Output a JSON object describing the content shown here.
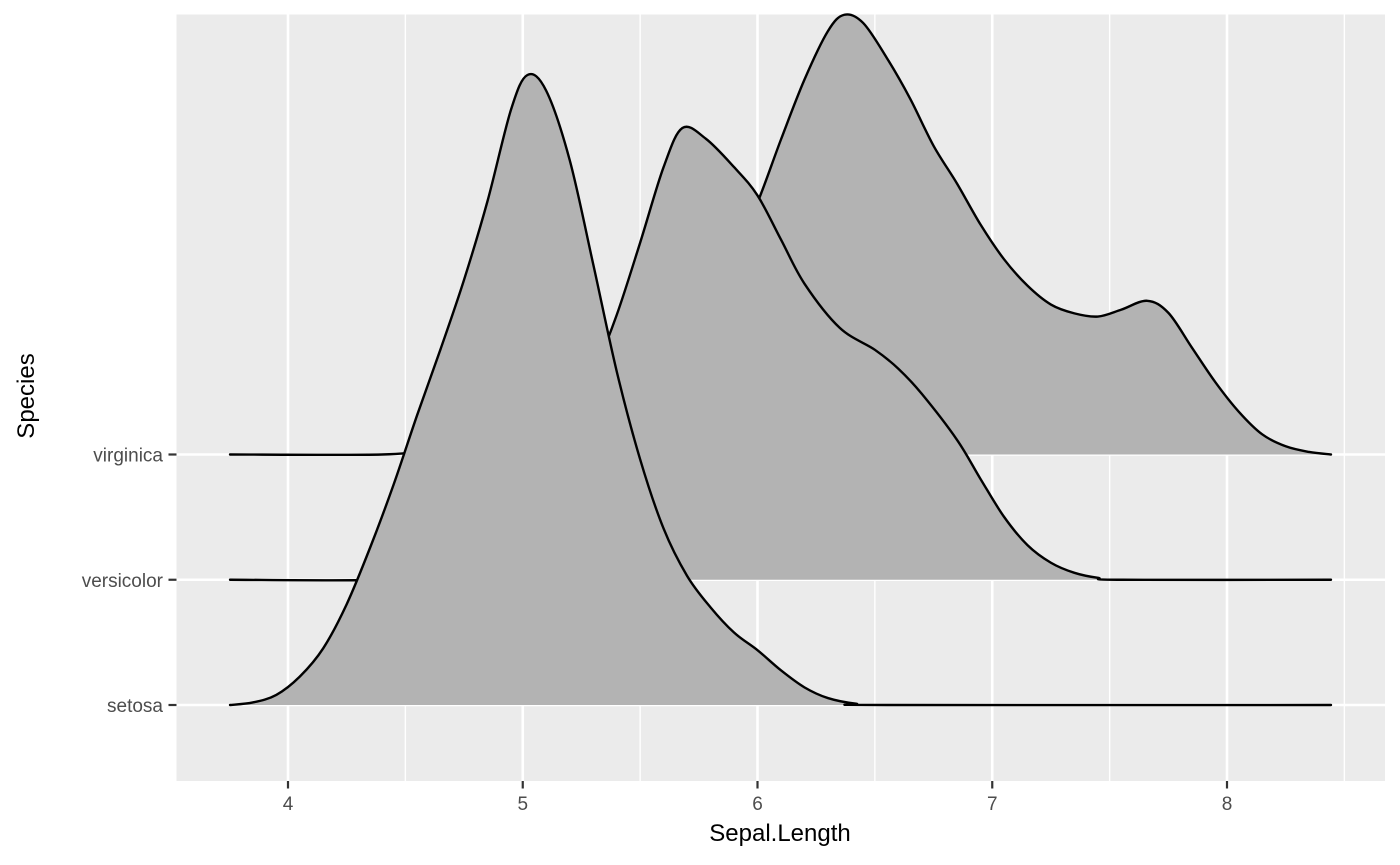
{
  "chart_data": {
    "type": "area",
    "variant": "ridgeline-density",
    "title": "",
    "xlabel": "Sepal.Length",
    "ylabel": "Species",
    "x_ticks": [
      4,
      5,
      6,
      7,
      8
    ],
    "x_minor_ticks": [
      4.5,
      5.5,
      6.5,
      7.5,
      8.5
    ],
    "x_panel_range": [
      3.525,
      8.673
    ],
    "curve_x_range": [
      3.753,
      8.443
    ],
    "grid": true,
    "legend": false,
    "categories": [
      "setosa",
      "versicolor",
      "virginica"
    ],
    "height_note": "heights are density relative to overall max (setosa peak = 1.0)",
    "series": [
      {
        "name": "setosa",
        "peak_x": 5.0,
        "points": [
          [
            3.753,
            0
          ],
          [
            3.85,
            0.004
          ],
          [
            3.95,
            0.016
          ],
          [
            4.05,
            0.045
          ],
          [
            4.15,
            0.09
          ],
          [
            4.25,
            0.16
          ],
          [
            4.35,
            0.25
          ],
          [
            4.45,
            0.35
          ],
          [
            4.55,
            0.46
          ],
          [
            4.65,
            0.565
          ],
          [
            4.75,
            0.675
          ],
          [
            4.85,
            0.8
          ],
          [
            4.95,
            0.945
          ],
          [
            5.02,
            1.0
          ],
          [
            5.1,
            0.975
          ],
          [
            5.2,
            0.865
          ],
          [
            5.3,
            0.7
          ],
          [
            5.4,
            0.53
          ],
          [
            5.5,
            0.39
          ],
          [
            5.6,
            0.28
          ],
          [
            5.7,
            0.205
          ],
          [
            5.8,
            0.155
          ],
          [
            5.9,
            0.115
          ],
          [
            6.0,
            0.087
          ],
          [
            6.1,
            0.055
          ],
          [
            6.2,
            0.028
          ],
          [
            6.3,
            0.011
          ],
          [
            6.42,
            0.002
          ],
          [
            6.55,
            0
          ],
          [
            8.443,
            0
          ]
        ]
      },
      {
        "name": "versicolor",
        "peak_x": 5.68,
        "points": [
          [
            3.753,
            0
          ],
          [
            4.4,
            0
          ],
          [
            4.6,
            0.012
          ],
          [
            4.8,
            0.045
          ],
          [
            5.0,
            0.115
          ],
          [
            5.15,
            0.2
          ],
          [
            5.3,
            0.325
          ],
          [
            5.4,
            0.42
          ],
          [
            5.5,
            0.535
          ],
          [
            5.6,
            0.655
          ],
          [
            5.68,
            0.717
          ],
          [
            5.78,
            0.7
          ],
          [
            5.9,
            0.655
          ],
          [
            6.0,
            0.61
          ],
          [
            6.1,
            0.54
          ],
          [
            6.2,
            0.47
          ],
          [
            6.35,
            0.4
          ],
          [
            6.5,
            0.365
          ],
          [
            6.6,
            0.335
          ],
          [
            6.7,
            0.295
          ],
          [
            6.85,
            0.222
          ],
          [
            6.95,
            0.16
          ],
          [
            7.05,
            0.1
          ],
          [
            7.15,
            0.055
          ],
          [
            7.25,
            0.027
          ],
          [
            7.35,
            0.011
          ],
          [
            7.45,
            0.003
          ],
          [
            7.55,
            0
          ],
          [
            8.443,
            0
          ]
        ]
      },
      {
        "name": "virginica",
        "peak_x": 6.37,
        "points": [
          [
            3.753,
            0
          ],
          [
            4.4,
            0
          ],
          [
            4.6,
            0.008
          ],
          [
            4.8,
            0.02
          ],
          [
            5.0,
            0.038
          ],
          [
            5.2,
            0.065
          ],
          [
            5.4,
            0.105
          ],
          [
            5.6,
            0.16
          ],
          [
            5.8,
            0.25
          ],
          [
            5.9,
            0.32
          ],
          [
            6.0,
            0.4
          ],
          [
            6.1,
            0.5
          ],
          [
            6.2,
            0.595
          ],
          [
            6.3,
            0.672
          ],
          [
            6.37,
            0.698
          ],
          [
            6.45,
            0.685
          ],
          [
            6.55,
            0.63
          ],
          [
            6.65,
            0.565
          ],
          [
            6.75,
            0.49
          ],
          [
            6.85,
            0.43
          ],
          [
            6.95,
            0.365
          ],
          [
            7.05,
            0.31
          ],
          [
            7.15,
            0.268
          ],
          [
            7.25,
            0.238
          ],
          [
            7.35,
            0.224
          ],
          [
            7.45,
            0.219
          ],
          [
            7.55,
            0.23
          ],
          [
            7.66,
            0.244
          ],
          [
            7.75,
            0.225
          ],
          [
            7.85,
            0.17
          ],
          [
            7.95,
            0.115
          ],
          [
            8.05,
            0.068
          ],
          [
            8.15,
            0.032
          ],
          [
            8.25,
            0.013
          ],
          [
            8.35,
            0.004
          ],
          [
            8.443,
            0
          ]
        ]
      }
    ],
    "colors": {
      "panel_background": "#EBEBEB",
      "gridline": "#FFFFFF",
      "ridge_fill": "#B3B3B3",
      "ridge_stroke": "#000000",
      "tick_mark": "#333333",
      "tick_text": "#4D4D4D",
      "axis_title_text": "#000000"
    }
  }
}
